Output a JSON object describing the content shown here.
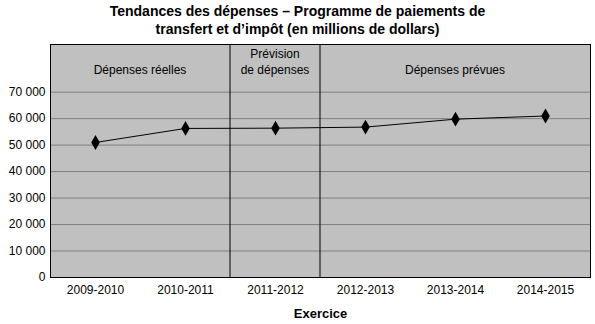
{
  "chart_data": {
    "type": "line",
    "title": "Tendances des dépenses – Programme de paiements de\ntransfert et d’impôt (en millions de dollars)",
    "x_label": "Exercice",
    "categories": [
      "2009-2010",
      "2010-2011",
      "2011-2012",
      "2012-2013",
      "2013-2014",
      "2014-2015"
    ],
    "values": [
      51000,
      56300,
      56400,
      56800,
      59800,
      61000
    ],
    "color": "#000000",
    "marker": "diamond",
    "line_style": "solid",
    "ylim": [
      0,
      88000
    ],
    "yticks": [
      0,
      {
        "value": 10000,
        "label": "10 000"
      },
      {
        "value": 20000,
        "label": "20 000"
      },
      {
        "value": 30000,
        "label": "30 000"
      },
      {
        "value": 40000,
        "label": "40 000"
      },
      {
        "value": 50000,
        "label": "50 000"
      },
      {
        "value": 60000,
        "label": "60 000"
      },
      {
        "value": 70000,
        "label": "70 000"
      }
    ],
    "grid": true,
    "annotations": [
      {
        "text": "Dépenses réelles",
        "categories": [
          "2009-2010",
          "2010-2011"
        ]
      },
      {
        "text": "Prévision\nde dépenses",
        "categories": [
          "2011-2012"
        ]
      },
      {
        "text": "Dépenses prévues",
        "categories": [
          "2012-2013",
          "2013-2014",
          "2014-2015"
        ]
      }
    ]
  }
}
